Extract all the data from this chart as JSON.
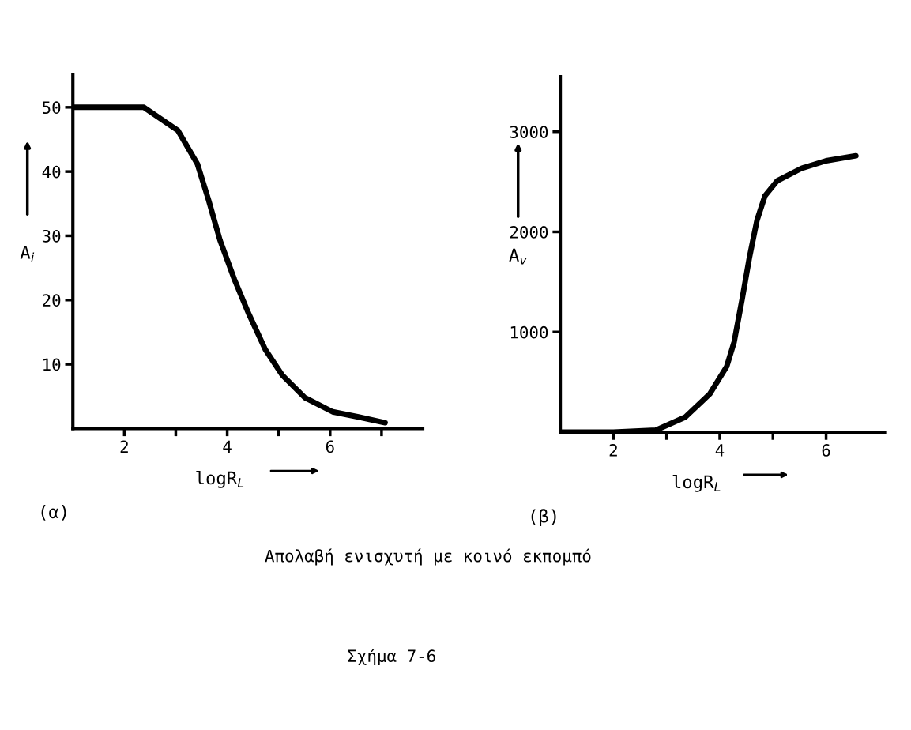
{
  "chart_data": [
    {
      "type": "line",
      "xlabel": "logR$_{L}$",
      "ylabel": "A$_{i}$",
      "annotations": [
        "(α)"
      ],
      "x": [
        1,
        2.38,
        3.04,
        3.42,
        3.64,
        3.86,
        4.14,
        4.41,
        4.74,
        5.07,
        5.51,
        6.05,
        6.55,
        7.07
      ],
      "series": [
        {
          "color": "#000000",
          "values": [
            50,
            50,
            46.4,
            41.2,
            35.5,
            29.3,
            23.2,
            18.0,
            12.3,
            8.3,
            4.8,
            2.6,
            1.8,
            0.9
          ]
        }
      ],
      "xlim": [
        1,
        7.8
      ],
      "ylim": [
        0,
        55
      ],
      "xticks": [
        2,
        {
          "value": 3,
          "label": null
        },
        4,
        {
          "value": 5,
          "label": null
        },
        6,
        {
          "value": 7,
          "label": null
        }
      ],
      "yticks": [
        10,
        20,
        30,
        40,
        50
      ],
      "grid": false,
      "marker": "none",
      "line_style": "solid"
    },
    {
      "type": "line",
      "xlabel": "logR$_{L}$",
      "ylabel": "A$_{v}$",
      "annotations": [
        "(β)",
        "Απολαβή ενισχυτή με κοινό εκπομπό",
        "Σχήμα 7-6"
      ],
      "x": [
        1,
        2,
        2.8,
        3.35,
        3.81,
        4.13,
        4.27,
        4.42,
        4.56,
        4.7,
        4.85,
        5.08,
        5.54,
        6.0,
        6.56
      ],
      "series": [
        {
          "color": "#000000",
          "values": [
            0,
            0,
            20,
            150,
            380,
            655,
            900,
            1326,
            1750,
            2115,
            2360,
            2510,
            2635,
            2710,
            2760
          ]
        }
      ],
      "xlim": [
        1,
        7.1
      ],
      "ylim": [
        0,
        3550
      ],
      "xticks": [
        2,
        {
          "value": 3,
          "label": null
        },
        4,
        {
          "value": 5,
          "label": null
        },
        6
      ],
      "yticks": [
        1000,
        2000,
        3000
      ],
      "grid": false,
      "marker": "none",
      "line_style": "solid"
    }
  ]
}
